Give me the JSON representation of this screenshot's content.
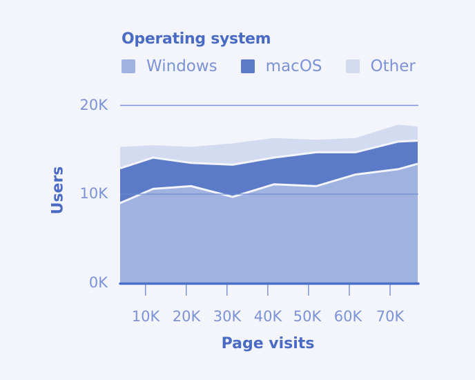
{
  "legend": {
    "title": "Operating system",
    "items": [
      {
        "label": "Windows",
        "color": "#a0b3e0"
      },
      {
        "label": "macOS",
        "color": "#5b7bc8"
      },
      {
        "label": "Other",
        "color": "#d3dbf1"
      }
    ]
  },
  "axes": {
    "x_label": "Page visits",
    "y_label": "Users",
    "x_ticks": [
      "10K",
      "20K",
      "30K",
      "40K",
      "50K",
      "60K",
      "70K"
    ],
    "y_ticks": [
      "0K",
      "10K",
      "20K"
    ]
  },
  "colors": {
    "background": "#f4f5fb",
    "axis": "#4a6fc6",
    "grid": "#7b93d6",
    "tick_text": "#7b93d6",
    "title_text": "#4a6bc4"
  },
  "chart_data": {
    "type": "area",
    "stacked": true,
    "title": "Operating system",
    "xlabel": "Page visits",
    "ylabel": "Users",
    "x": [
      3800,
      11900,
      21200,
      31400,
      41500,
      51900,
      61500,
      72000,
      76700
    ],
    "x_ticks": [
      10000,
      20000,
      30000,
      40000,
      50000,
      60000,
      70000
    ],
    "x_tick_labels": [
      "10K",
      "20K",
      "30K",
      "40K",
      "50K",
      "60K",
      "70K"
    ],
    "y_ticks": [
      0,
      10000,
      20000
    ],
    "y_tick_labels": [
      "0K",
      "10K",
      "20K"
    ],
    "ylim": [
      0,
      20000
    ],
    "grid": "horizontal",
    "legend_position": "top-left",
    "series": [
      {
        "name": "Windows",
        "color": "#a0b3e0",
        "values": [
          9000,
          10600,
          10900,
          9700,
          11100,
          10900,
          12200,
          12800,
          13400
        ]
      },
      {
        "name": "macOS",
        "color": "#5b7bc8",
        "values": [
          3900,
          3500,
          2600,
          3600,
          3000,
          3800,
          2500,
          3100,
          2600
        ]
      },
      {
        "name": "Other",
        "color": "#d3dbf1",
        "values": [
          2400,
          1400,
          1800,
          2400,
          2200,
          1400,
          1600,
          1900,
          1600
        ]
      }
    ]
  }
}
